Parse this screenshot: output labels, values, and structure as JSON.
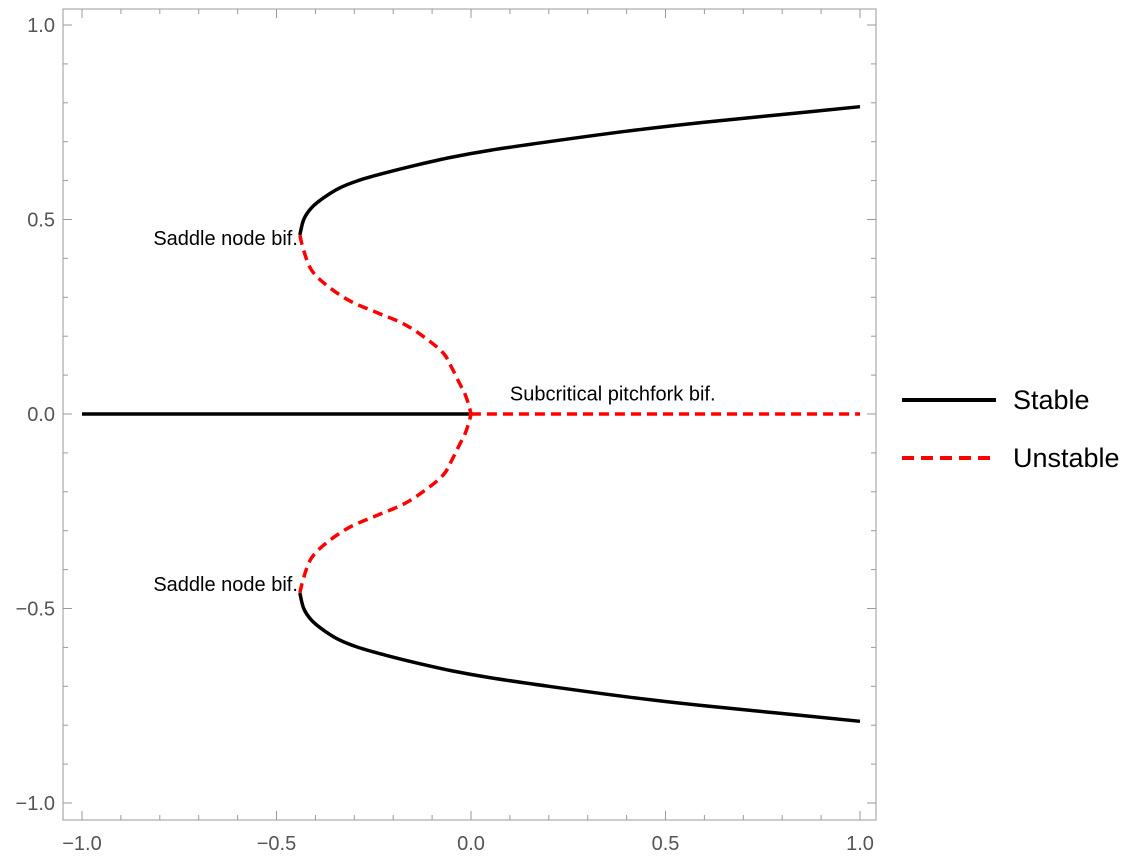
{
  "chart_data": {
    "type": "line",
    "title": "",
    "xlabel": "",
    "ylabel": "",
    "xlim": [
      -1.0,
      1.0
    ],
    "ylim": [
      -1.0,
      1.0
    ],
    "grid": false,
    "x_ticks": [
      {
        "value": -1.0,
        "label": "−1.0"
      },
      {
        "value": -0.5,
        "label": "−0.5"
      },
      {
        "value": 0.0,
        "label": "0.0"
      },
      {
        "value": 0.5,
        "label": "0.5"
      },
      {
        "value": 1.0,
        "label": "1.0"
      }
    ],
    "y_ticks": [
      {
        "value": 1.0,
        "label": "1.0"
      },
      {
        "value": 0.5,
        "label": "0.5"
      },
      {
        "value": 0.0,
        "label": "0.0"
      },
      {
        "value": -0.5,
        "label": "−0.5"
      },
      {
        "value": -1.0,
        "label": "−1.0"
      }
    ],
    "legend_position": "right",
    "legend": [
      {
        "label": "Stable",
        "color": "#000000",
        "style": "solid"
      },
      {
        "label": "Unstable",
        "color": "#ff0000",
        "style": "dashed"
      }
    ],
    "series": [
      {
        "legend_index": 0,
        "color": "#000000",
        "style": "solid",
        "x": [
          -1.0,
          0.0
        ],
        "y": [
          0.0,
          0.0
        ]
      },
      {
        "legend_index": 1,
        "color": "#ff0000",
        "style": "dashed",
        "x": [
          0.0,
          1.0
        ],
        "y": [
          0.0,
          0.0
        ]
      },
      {
        "legend_index": 0,
        "color": "#000000",
        "style": "solid",
        "x": [
          -0.44,
          -0.43,
          -0.41,
          -0.38,
          -0.34,
          -0.29,
          -0.22,
          -0.14,
          -0.05,
          0.05,
          0.2,
          0.4,
          0.6,
          0.8,
          1.0
        ],
        "y": [
          0.46,
          0.5,
          0.53,
          0.555,
          0.58,
          0.6,
          0.62,
          0.64,
          0.66,
          0.678,
          0.7,
          0.727,
          0.75,
          0.77,
          0.79
        ]
      },
      {
        "legend_index": 0,
        "color": "#000000",
        "style": "solid",
        "x": [
          -0.44,
          -0.43,
          -0.41,
          -0.38,
          -0.34,
          -0.29,
          -0.22,
          -0.14,
          -0.05,
          0.05,
          0.2,
          0.4,
          0.6,
          0.8,
          1.0
        ],
        "y": [
          -0.46,
          -0.5,
          -0.53,
          -0.555,
          -0.58,
          -0.6,
          -0.62,
          -0.64,
          -0.66,
          -0.678,
          -0.7,
          -0.727,
          -0.75,
          -0.77,
          -0.79
        ]
      },
      {
        "legend_index": 1,
        "color": "#ff0000",
        "style": "dashed",
        "x": [
          -0.44,
          -0.43,
          -0.41,
          -0.37,
          -0.31,
          -0.24,
          -0.17,
          -0.11,
          -0.07,
          -0.05,
          -0.03,
          -0.015,
          -0.005,
          0.0
        ],
        "y": [
          0.46,
          0.42,
          0.37,
          0.33,
          0.29,
          0.26,
          0.23,
          0.19,
          0.155,
          0.12,
          0.08,
          0.05,
          0.02,
          0.0
        ]
      },
      {
        "legend_index": 1,
        "color": "#ff0000",
        "style": "dashed",
        "x": [
          -0.44,
          -0.43,
          -0.41,
          -0.37,
          -0.31,
          -0.24,
          -0.17,
          -0.11,
          -0.07,
          -0.05,
          -0.03,
          -0.015,
          -0.005,
          0.0
        ],
        "y": [
          -0.46,
          -0.42,
          -0.37,
          -0.33,
          -0.29,
          -0.26,
          -0.23,
          -0.19,
          -0.155,
          -0.12,
          -0.08,
          -0.05,
          -0.02,
          0.0
        ]
      }
    ],
    "annotations": [
      {
        "text": "Saddle node bif.",
        "x": -0.445,
        "y": 0.445,
        "anchor": "end"
      },
      {
        "text": "Saddle node bif.",
        "x": -0.445,
        "y": -0.445,
        "anchor": "end"
      },
      {
        "text": "Subcritical pitchfork bif.",
        "x": 0.1,
        "y": 0.045,
        "anchor": "start"
      }
    ]
  }
}
